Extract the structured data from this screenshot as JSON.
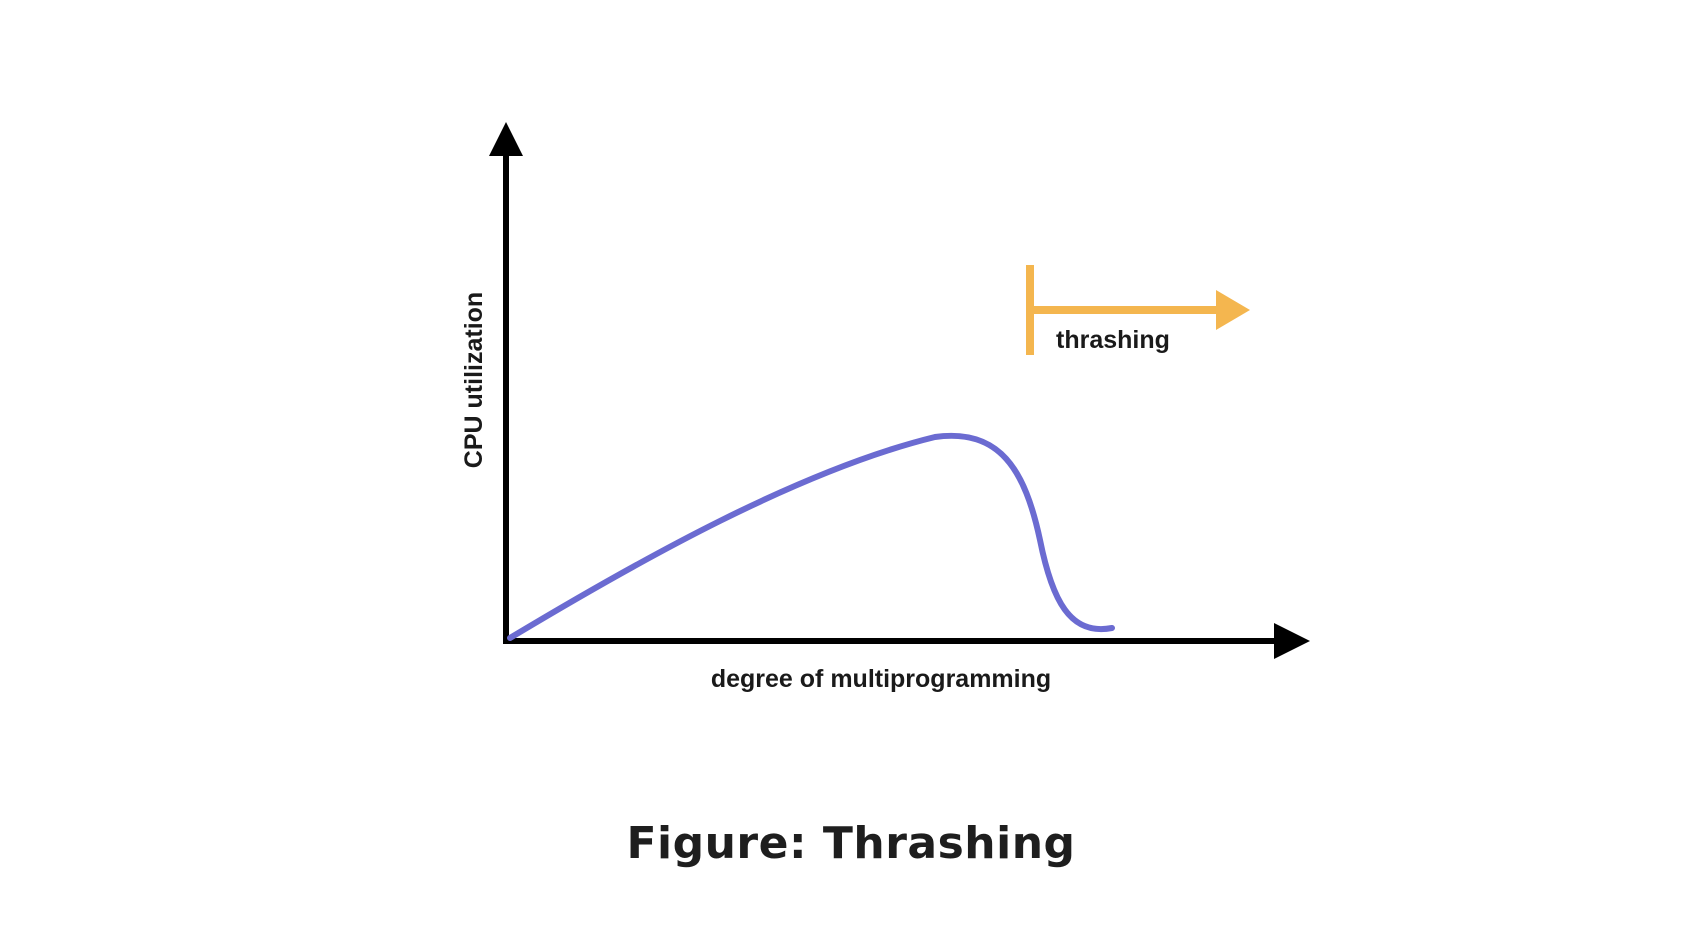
{
  "figure": {
    "x_axis_label": "degree of multiprogramming",
    "y_axis_label": "CPU utilization",
    "annotation_label": "thrashing",
    "caption": "Figure: Thrashing"
  },
  "colors": {
    "curve": "#6b6bd1",
    "annotation": "#f4b64f",
    "axes": "#000000"
  }
}
